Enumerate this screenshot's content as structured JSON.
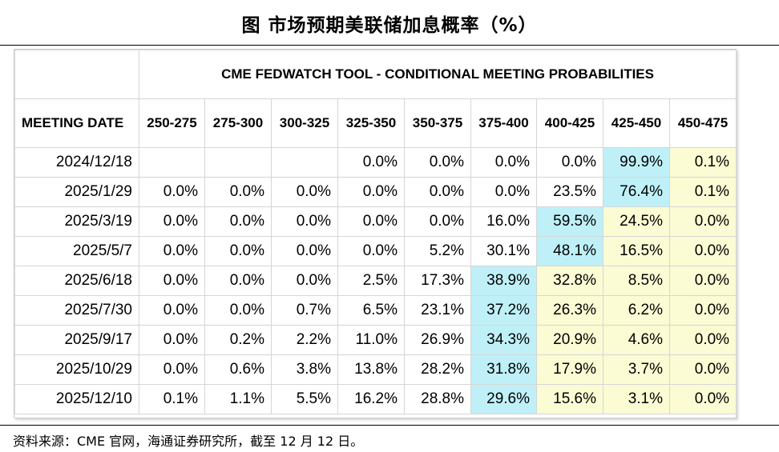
{
  "figure": {
    "title": "图 市场预期美联储加息概率（%）",
    "source": "资料来源：CME 官网，海通证券研究所，截至 12 月 12 日。"
  },
  "chart_data": {
    "type": "table",
    "title": "CME FEDWATCH TOOL - CONDITIONAL MEETING PROBABILITIES",
    "row_header_label": "MEETING DATE",
    "columns": [
      "250-275",
      "275-300",
      "300-325",
      "325-350",
      "350-375",
      "375-400",
      "400-425",
      "425-450",
      "450-475"
    ],
    "rows": [
      {
        "date": "2024/12/18",
        "values": [
          "",
          "",
          "",
          "0.0%",
          "0.0%",
          "0.0%",
          "0.0%",
          "99.9%",
          "0.1%"
        ],
        "highlight": {
          "blue": [
            7
          ],
          "yellow": [
            8
          ]
        }
      },
      {
        "date": "2025/1/29",
        "values": [
          "0.0%",
          "0.0%",
          "0.0%",
          "0.0%",
          "0.0%",
          "0.0%",
          "23.5%",
          "76.4%",
          "0.1%"
        ],
        "highlight": {
          "blue": [
            7
          ],
          "yellow": [
            8
          ]
        }
      },
      {
        "date": "2025/3/19",
        "values": [
          "0.0%",
          "0.0%",
          "0.0%",
          "0.0%",
          "0.0%",
          "16.0%",
          "59.5%",
          "24.5%",
          "0.0%"
        ],
        "highlight": {
          "blue": [
            6
          ],
          "yellow": [
            7,
            8
          ]
        }
      },
      {
        "date": "2025/5/7",
        "values": [
          "0.0%",
          "0.0%",
          "0.0%",
          "0.0%",
          "5.2%",
          "30.1%",
          "48.1%",
          "16.5%",
          "0.0%"
        ],
        "highlight": {
          "blue": [
            6
          ],
          "yellow": [
            7,
            8
          ]
        }
      },
      {
        "date": "2025/6/18",
        "values": [
          "0.0%",
          "0.0%",
          "0.0%",
          "2.5%",
          "17.3%",
          "38.9%",
          "32.8%",
          "8.5%",
          "0.0%"
        ],
        "highlight": {
          "blue": [
            5
          ],
          "yellow": [
            6,
            7,
            8
          ]
        }
      },
      {
        "date": "2025/7/30",
        "values": [
          "0.0%",
          "0.0%",
          "0.7%",
          "6.5%",
          "23.1%",
          "37.2%",
          "26.3%",
          "6.2%",
          "0.0%"
        ],
        "highlight": {
          "blue": [
            5
          ],
          "yellow": [
            6,
            7,
            8
          ]
        }
      },
      {
        "date": "2025/9/17",
        "values": [
          "0.0%",
          "0.2%",
          "2.2%",
          "11.0%",
          "26.9%",
          "34.3%",
          "20.9%",
          "4.6%",
          "0.0%"
        ],
        "highlight": {
          "blue": [
            5
          ],
          "yellow": [
            6,
            7,
            8
          ]
        }
      },
      {
        "date": "2025/10/29",
        "values": [
          "0.0%",
          "0.6%",
          "3.8%",
          "13.8%",
          "28.2%",
          "31.8%",
          "17.9%",
          "3.7%",
          "0.0%"
        ],
        "highlight": {
          "blue": [
            5
          ],
          "yellow": [
            6,
            7,
            8
          ]
        }
      },
      {
        "date": "2025/12/10",
        "values": [
          "0.1%",
          "1.1%",
          "5.5%",
          "16.2%",
          "28.8%",
          "29.6%",
          "15.6%",
          "3.1%",
          "0.0%"
        ],
        "highlight": {
          "blue": [
            5
          ],
          "yellow": [
            6,
            7,
            8
          ]
        }
      }
    ]
  }
}
